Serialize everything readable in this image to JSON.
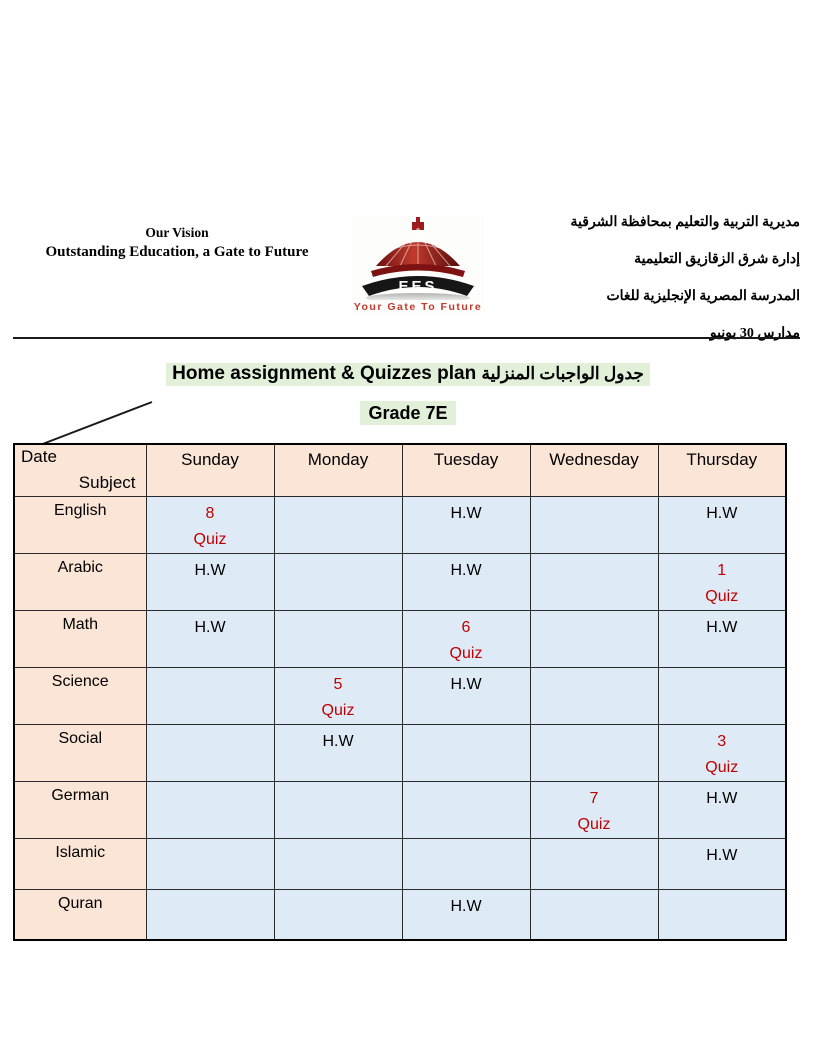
{
  "page": {
    "vision": {
      "line1": "Our Vision",
      "line2": "Outstanding Education, a Gate to Future"
    },
    "logo": {
      "acronym": "EES",
      "tagline": "Your Gate To Future"
    },
    "arabic_header": {
      "lines": [
        "مديرية التربية والتعليم بمحافظة الشرقية",
        "إدارة شرق الزقازيق التعليمية",
        "المدرسة المصرية الإنجليزية للغات",
        "مدارس 30 يونيو"
      ]
    },
    "title": {
      "english": "Home assignment & Quizzes plan",
      "arabic": "جدول الواجبات المنزلية"
    },
    "grade": "Grade 7E"
  },
  "table": {
    "corner": {
      "top_left": "Date",
      "bottom_right": "Subject"
    },
    "day_headers": [
      "Sunday",
      "Monday",
      "Tuesday",
      "Wednesday",
      "Thursday"
    ],
    "rows": [
      {
        "subject": "English",
        "cells": [
          {
            "lines": [
              "8",
              "Quiz"
            ],
            "color": "red"
          },
          {
            "lines": []
          },
          {
            "lines": [
              "H.W"
            ]
          },
          {
            "lines": []
          },
          {
            "lines": [
              "H.W"
            ]
          }
        ]
      },
      {
        "subject": "Arabic",
        "cells": [
          {
            "lines": [
              "H.W"
            ]
          },
          {
            "lines": []
          },
          {
            "lines": [
              "H.W"
            ]
          },
          {
            "lines": []
          },
          {
            "lines": [
              "1",
              "Quiz"
            ],
            "color": "red"
          }
        ]
      },
      {
        "subject": "Math",
        "cells": [
          {
            "lines": [
              "H.W"
            ]
          },
          {
            "lines": []
          },
          {
            "lines": [
              "6",
              "Quiz"
            ],
            "color": "red"
          },
          {
            "lines": []
          },
          {
            "lines": [
              "H.W"
            ]
          }
        ]
      },
      {
        "subject": "Science",
        "cells": [
          {
            "lines": []
          },
          {
            "lines": [
              "5",
              "Quiz"
            ],
            "color": "red"
          },
          {
            "lines": [
              "H.W"
            ]
          },
          {
            "lines": []
          },
          {
            "lines": []
          }
        ]
      },
      {
        "subject": "Social",
        "cells": [
          {
            "lines": []
          },
          {
            "lines": [
              "H.W"
            ]
          },
          {
            "lines": []
          },
          {
            "lines": []
          },
          {
            "lines": [
              "3",
              "Quiz"
            ],
            "color": "red"
          }
        ]
      },
      {
        "subject": "German",
        "cells": [
          {
            "lines": []
          },
          {
            "lines": []
          },
          {
            "lines": []
          },
          {
            "lines": [
              "7",
              "Quiz"
            ],
            "color": "red"
          },
          {
            "lines": [
              "H.W"
            ]
          }
        ]
      },
      {
        "subject": "Islamic",
        "cells": [
          {
            "lines": []
          },
          {
            "lines": []
          },
          {
            "lines": []
          },
          {
            "lines": []
          },
          {
            "lines": [
              "H.W"
            ]
          }
        ]
      },
      {
        "subject": "Quran",
        "cells": [
          {
            "lines": []
          },
          {
            "lines": []
          },
          {
            "lines": [
              "H.W"
            ]
          },
          {
            "lines": []
          },
          {
            "lines": []
          }
        ]
      }
    ]
  },
  "colors": {
    "subject_header_bg": "#fbe5d6",
    "day_cell_bg": "#deebf7",
    "title_highlight": "#e2efd9",
    "quiz_red": "#c00000",
    "logo_red": "#8c1616"
  }
}
